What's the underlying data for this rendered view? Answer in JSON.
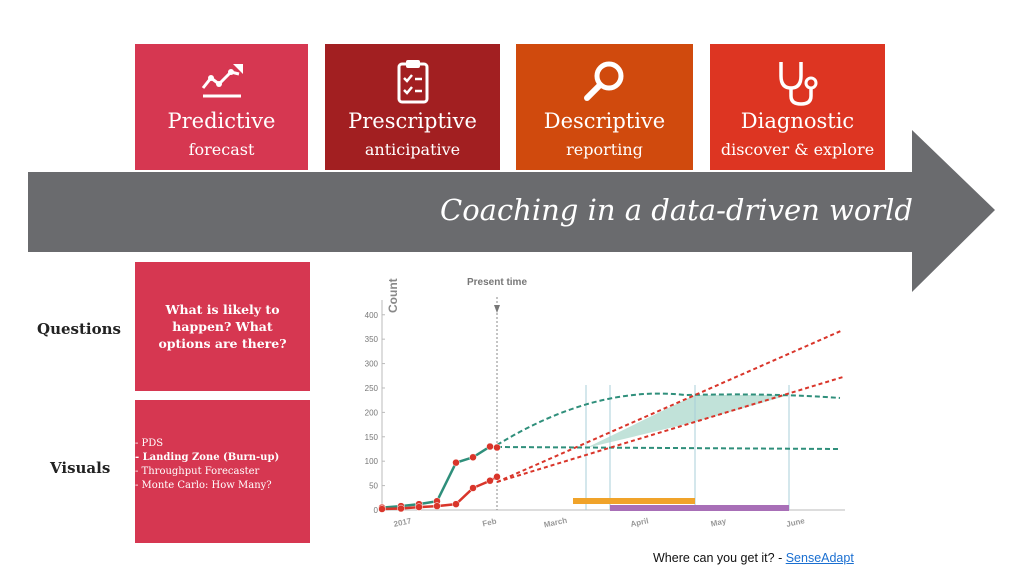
{
  "cards": [
    {
      "title": "Predictive",
      "subtitle": "forecast",
      "color": "#d63751",
      "icon": "trend-chart-icon"
    },
    {
      "title": "Prescriptive",
      "subtitle": "anticipative",
      "color": "#a21f21",
      "icon": "clipboard-checklist-icon"
    },
    {
      "title": "Descriptive",
      "subtitle": "reporting",
      "color": "#d04a0d",
      "icon": "magnifier-icon"
    },
    {
      "title": "Diagnostic",
      "subtitle": "discover & explore",
      "color": "#dd3522",
      "icon": "stethoscope-icon"
    }
  ],
  "banner": {
    "text": "Coaching in a data-driven world",
    "color": "#6a6b6e"
  },
  "rows": {
    "questions_label": "Questions",
    "visuals_label": "Visuals"
  },
  "questions_box": {
    "text": "What is likely to happen? What options are there?"
  },
  "visuals_box": {
    "items": [
      "- PDS",
      "- Landing Zone (Burn-up)",
      "- Throughput Forecaster",
      "- Monte Carlo: How Many?"
    ]
  },
  "chart_data": {
    "type": "line",
    "ylabel": "Count",
    "annotation": "Present time",
    "yticks": [
      0,
      50,
      100,
      150,
      200,
      250,
      300,
      350,
      400
    ],
    "ylim": [
      0,
      420
    ],
    "xticks": [
      "2017",
      "Feb",
      "March",
      "April",
      "May",
      "June"
    ],
    "series": [
      {
        "values": [
          [
            0,
            5
          ],
          [
            1,
            8
          ],
          [
            2,
            12
          ],
          [
            3,
            18
          ],
          [
            4,
            97
          ],
          [
            5,
            108
          ],
          [
            6,
            130
          ],
          [
            7,
            128
          ]
        ],
        "color": "#2f8f7b"
      },
      {
        "values": [
          [
            0,
            2
          ],
          [
            1,
            3
          ],
          [
            2,
            6
          ],
          [
            3,
            8
          ],
          [
            4,
            12
          ],
          [
            5,
            45
          ],
          [
            6,
            60
          ],
          [
            7,
            68
          ]
        ],
        "color": "#d9352a"
      }
    ],
    "grid": false
  },
  "footer": {
    "text": "Where can you get it? - ",
    "link": "SenseAdapt"
  }
}
